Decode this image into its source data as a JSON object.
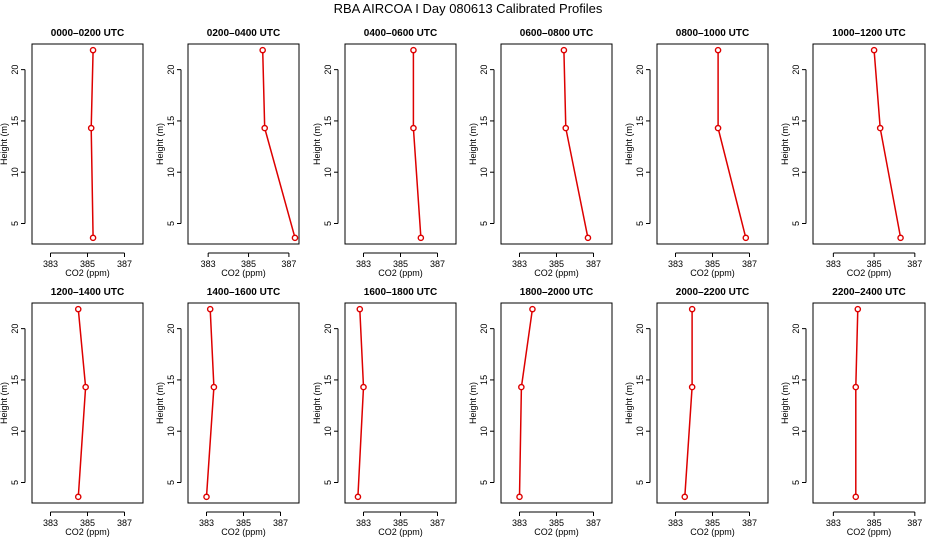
{
  "figure": {
    "title": "RBA AIRCOA I  Day 080613  Calibrated Profiles"
  },
  "chart_data": [
    {
      "type": "line",
      "title": "0000–0200 UTC",
      "xlabel": "CO2 (ppm)",
      "ylabel": "Height (m)",
      "xlim": [
        382.0,
        388.0
      ],
      "ylim": [
        3.0,
        22.5
      ],
      "xticks": [
        383,
        385,
        387
      ],
      "yticks": [
        5,
        10,
        15,
        20
      ],
      "series": [
        {
          "x": [
            385.3,
            385.2,
            385.3
          ],
          "y": [
            3.6,
            14.3,
            21.9
          ]
        }
      ]
    },
    {
      "type": "line",
      "title": "0200–0400 UTC",
      "xlabel": "CO2 (ppm)",
      "ylabel": "Height (m)",
      "xlim": [
        382.0,
        387.5
      ],
      "ylim": [
        3.0,
        22.5
      ],
      "xticks": [
        383,
        385,
        387
      ],
      "yticks": [
        5,
        10,
        15,
        20
      ],
      "series": [
        {
          "x": [
            387.3,
            385.8,
            385.7
          ],
          "y": [
            3.6,
            14.3,
            21.9
          ]
        }
      ]
    },
    {
      "type": "line",
      "title": "0400–0600 UTC",
      "xlabel": "CO2 (ppm)",
      "ylabel": "Height (m)",
      "xlim": [
        382.0,
        388.0
      ],
      "ylim": [
        3.0,
        22.5
      ],
      "xticks": [
        383,
        385,
        387
      ],
      "yticks": [
        5,
        10,
        15,
        20
      ],
      "series": [
        {
          "x": [
            386.1,
            385.7,
            385.7
          ],
          "y": [
            3.6,
            14.3,
            21.9
          ]
        }
      ]
    },
    {
      "type": "line",
      "title": "0600–0800 UTC",
      "xlabel": "CO2 (ppm)",
      "ylabel": "Height (m)",
      "xlim": [
        382.0,
        388.0
      ],
      "ylim": [
        3.0,
        22.5
      ],
      "xticks": [
        383,
        385,
        387
      ],
      "yticks": [
        5,
        10,
        15,
        20
      ],
      "series": [
        {
          "x": [
            386.7,
            385.5,
            385.4
          ],
          "y": [
            3.6,
            14.3,
            21.9
          ]
        }
      ]
    },
    {
      "type": "line",
      "title": "0800–1000 UTC",
      "xlabel": "CO2 (ppm)",
      "ylabel": "Height (m)",
      "xlim": [
        382.0,
        388.0
      ],
      "ylim": [
        3.0,
        22.5
      ],
      "xticks": [
        383,
        385,
        387
      ],
      "yticks": [
        5,
        10,
        15,
        20
      ],
      "series": [
        {
          "x": [
            386.8,
            385.3,
            385.3
          ],
          "y": [
            3.6,
            14.3,
            21.9
          ]
        }
      ]
    },
    {
      "type": "line",
      "title": "1000–1200 UTC",
      "xlabel": "CO2 (ppm)",
      "ylabel": "Height (m)",
      "xlim": [
        382.0,
        387.5
      ],
      "ylim": [
        3.0,
        22.5
      ],
      "xticks": [
        383,
        385,
        387
      ],
      "yticks": [
        5,
        10,
        15,
        20
      ],
      "series": [
        {
          "x": [
            386.3,
            385.3,
            385.0
          ],
          "y": [
            3.6,
            14.3,
            21.9
          ]
        }
      ]
    },
    {
      "type": "line",
      "title": "1200–1400 UTC",
      "xlabel": "CO2 (ppm)",
      "ylabel": "Height (m)",
      "xlim": [
        382.0,
        388.0
      ],
      "ylim": [
        3.0,
        22.5
      ],
      "xticks": [
        383,
        385,
        387
      ],
      "yticks": [
        5,
        10,
        15,
        20
      ],
      "series": [
        {
          "x": [
            384.5,
            384.9,
            384.5
          ],
          "y": [
            3.6,
            14.3,
            21.9
          ]
        }
      ]
    },
    {
      "type": "line",
      "title": "1400–1600 UTC",
      "xlabel": "CO2 (ppm)",
      "ylabel": "Height (m)",
      "xlim": [
        382.0,
        388.0
      ],
      "ylim": [
        3.0,
        22.5
      ],
      "xticks": [
        383,
        385,
        387
      ],
      "yticks": [
        5,
        10,
        15,
        20
      ],
      "series": [
        {
          "x": [
            383.0,
            383.4,
            383.2
          ],
          "y": [
            3.6,
            14.3,
            21.9
          ]
        }
      ]
    },
    {
      "type": "line",
      "title": "1600–1800 UTC",
      "xlabel": "CO2 (ppm)",
      "ylabel": "Height (m)",
      "xlim": [
        382.0,
        388.0
      ],
      "ylim": [
        3.0,
        22.5
      ],
      "xticks": [
        383,
        385,
        387
      ],
      "yticks": [
        5,
        10,
        15,
        20
      ],
      "series": [
        {
          "x": [
            382.7,
            383.0,
            382.8
          ],
          "y": [
            3.6,
            14.3,
            21.9
          ]
        }
      ]
    },
    {
      "type": "line",
      "title": "1800–2000 UTC",
      "xlabel": "CO2 (ppm)",
      "ylabel": "Height (m)",
      "xlim": [
        382.0,
        388.0
      ],
      "ylim": [
        3.0,
        22.5
      ],
      "xticks": [
        383,
        385,
        387
      ],
      "yticks": [
        5,
        10,
        15,
        20
      ],
      "series": [
        {
          "x": [
            383.0,
            383.1,
            383.7
          ],
          "y": [
            3.6,
            14.3,
            21.9
          ]
        }
      ]
    },
    {
      "type": "line",
      "title": "2000–2200 UTC",
      "xlabel": "CO2 (ppm)",
      "ylabel": "Height (m)",
      "xlim": [
        382.0,
        388.0
      ],
      "ylim": [
        3.0,
        22.5
      ],
      "xticks": [
        383,
        385,
        387
      ],
      "yticks": [
        5,
        10,
        15,
        20
      ],
      "series": [
        {
          "x": [
            383.5,
            383.9,
            383.9
          ],
          "y": [
            3.6,
            14.3,
            21.9
          ]
        }
      ]
    },
    {
      "type": "line",
      "title": "2200–2400 UTC",
      "xlabel": "CO2 (ppm)",
      "ylabel": "Height (m)",
      "xlim": [
        382.0,
        387.5
      ],
      "ylim": [
        3.0,
        22.5
      ],
      "xticks": [
        383,
        385,
        387
      ],
      "yticks": [
        5,
        10,
        15,
        20
      ],
      "series": [
        {
          "x": [
            384.1,
            384.1,
            384.2
          ],
          "y": [
            3.6,
            14.3,
            21.9
          ]
        }
      ]
    }
  ],
  "style": {
    "line_color": "#dd0000",
    "axis_color": "#000000"
  }
}
